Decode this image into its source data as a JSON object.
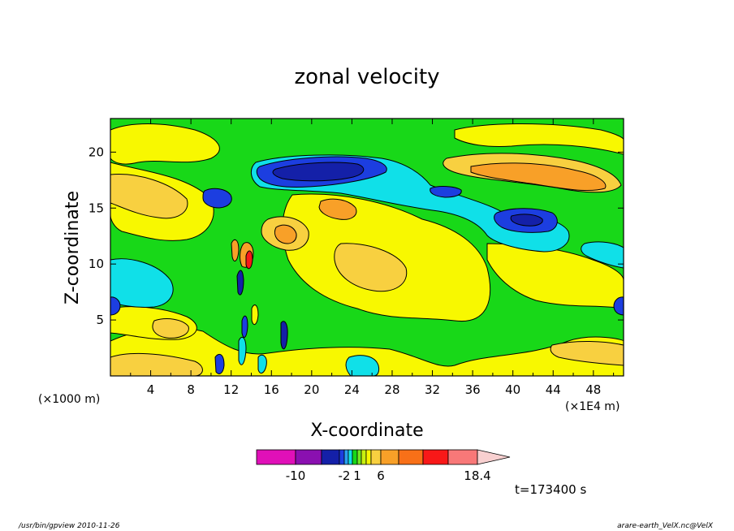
{
  "chart_data": {
    "type": "heatmap",
    "title": "zonal velocity",
    "xlabel": "X-coordinate",
    "ylabel": "Z-coordinate",
    "x_unit_left": "(×1000 m)",
    "x_unit_right": "(×1E4 m)",
    "xlim": [
      0,
      51
    ],
    "ylim": [
      0,
      23
    ],
    "x_ticks": [
      "4",
      "8",
      "12",
      "16",
      "20",
      "24",
      "28",
      "32",
      "36",
      "40",
      "44",
      "48"
    ],
    "y_ticks": [
      "5",
      "10",
      "15",
      "20"
    ],
    "colorbar": {
      "levels": [
        -14,
        -10,
        -6,
        -3,
        -2,
        -1,
        0,
        1,
        2,
        3,
        4,
        6,
        9,
        12,
        15,
        18.4
      ],
      "labels": [
        "-10",
        "-2",
        "1",
        "6",
        "18.4"
      ],
      "colors": [
        "#e010b8",
        "#8a10b0",
        "#1420a8",
        "#1c3ee0",
        "#2aa0f0",
        "#10e0e8",
        "#18d818",
        "#70ea20",
        "#c8f010",
        "#f8f800",
        "#f8d040",
        "#f8a028",
        "#f87018",
        "#f81818",
        "#f87878",
        "#f8b8b8"
      ],
      "extend_color": "#f8d0d0"
    },
    "grid": false
  },
  "time_label": "t=173400 s",
  "footer_left": "/usr/bin/gpview   2010-11-26",
  "footer_right": "arare-earth_VelX.nc@VelX",
  "colors": {
    "background": "#18d818",
    "yellow": "#f8f800",
    "light_orange": "#f8d040",
    "orange": "#f8a028",
    "cyan": "#10e0e8",
    "blue": "#1c3ee0",
    "dark_blue": "#1420a8"
  }
}
